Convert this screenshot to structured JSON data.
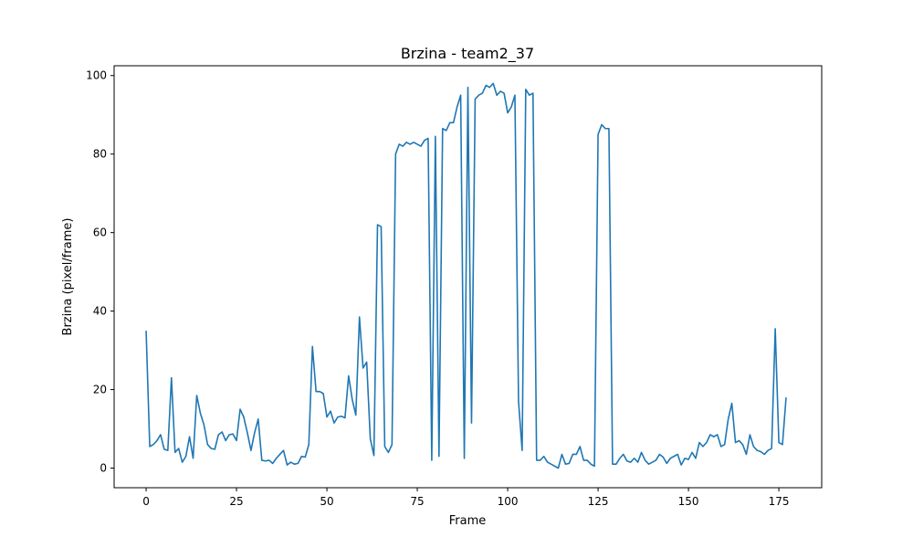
{
  "chart_data": {
    "type": "line",
    "title": "Brzina - team2_37",
    "xlabel": "Frame",
    "ylabel": "Brzina (pixel/frame)",
    "xlim": [
      -8.85,
      186.85
    ],
    "ylim": [
      -5,
      102.5
    ],
    "xticks": [
      0,
      25,
      50,
      75,
      100,
      125,
      150,
      175
    ],
    "yticks": [
      0,
      20,
      40,
      60,
      80,
      100
    ],
    "grid": false,
    "line_color": "#1f77b4",
    "series": [
      {
        "x": [
          0,
          1,
          2,
          3,
          4,
          5,
          6,
          7,
          8,
          9,
          10,
          11,
          12,
          13,
          14,
          15,
          16,
          17,
          18,
          19,
          20,
          21,
          22,
          23,
          24,
          25,
          26,
          27,
          28,
          29,
          30,
          31,
          32,
          33,
          34,
          35,
          36,
          37,
          38,
          39,
          40,
          41,
          42,
          43,
          44,
          45,
          46,
          47,
          48,
          49,
          50,
          51,
          52,
          53,
          54,
          55,
          56,
          57,
          58,
          59,
          60,
          61,
          62,
          63,
          64,
          65,
          66,
          67,
          68,
          69,
          70,
          71,
          72,
          73,
          74,
          75,
          76,
          77,
          78,
          79,
          80,
          81,
          82,
          83,
          84,
          85,
          86,
          87,
          88,
          89,
          90,
          91,
          92,
          93,
          94,
          95,
          96,
          97,
          98,
          99,
          100,
          101,
          102,
          103,
          104,
          105,
          106,
          107,
          108,
          109,
          110,
          111,
          112,
          113,
          114,
          115,
          116,
          117,
          118,
          119,
          120,
          121,
          122,
          123,
          124,
          125,
          126,
          127,
          128,
          129,
          130,
          131,
          132,
          133,
          134,
          135,
          136,
          137,
          138,
          139,
          140,
          141,
          142,
          143,
          144,
          145,
          146,
          147,
          148,
          149,
          150,
          151,
          152,
          153,
          154,
          155,
          156,
          157,
          158,
          159,
          160,
          161,
          162,
          163,
          164,
          165,
          166,
          167,
          168,
          169,
          170,
          171,
          172,
          173,
          174,
          175,
          176,
          177
        ],
        "y": [
          35,
          5.5,
          6,
          7,
          8.5,
          4.8,
          4.5,
          23,
          4,
          5,
          1.5,
          3,
          8,
          2.5,
          18.5,
          14,
          11,
          6,
          5,
          4.8,
          8.5,
          9.2,
          7,
          8.5,
          8.7,
          7,
          15,
          13,
          9,
          4.5,
          9,
          12.5,
          2,
          1.8,
          2,
          1.2,
          2.5,
          3.5,
          4.5,
          0.8,
          1.5,
          1,
          1.2,
          3,
          2.8,
          6,
          31,
          19.5,
          19.5,
          19,
          13,
          14.5,
          11.5,
          13,
          13.2,
          12.8,
          23.5,
          17.5,
          13.5,
          38.5,
          25.5,
          27,
          7.5,
          3.2,
          62,
          61.5,
          5.5,
          4,
          6,
          80,
          82.5,
          82,
          83,
          82.5,
          83,
          82.5,
          82,
          83.5,
          84,
          2,
          84.5,
          3,
          86.5,
          86,
          88,
          88,
          92,
          95,
          2.5,
          97,
          11.5,
          94,
          95,
          95.5,
          97.5,
          97,
          98,
          95,
          96,
          95.5,
          90.5,
          92,
          95,
          17,
          4.5,
          96.5,
          95,
          95.5,
          2,
          2,
          3,
          1.5,
          1,
          0.5,
          0,
          3.5,
          1,
          1.2,
          3.5,
          3.5,
          5.5,
          2,
          2,
          1,
          0.5,
          85,
          87.5,
          86.5,
          86.5,
          1,
          1,
          2.5,
          3.5,
          1.8,
          1.5,
          2.5,
          1.5,
          4,
          2,
          1,
          1.5,
          2,
          3.5,
          2.8,
          1.2,
          2.5,
          3,
          3.5,
          0.8,
          2.5,
          2.2,
          4,
          2.5,
          6.5,
          5.5,
          6.5,
          8.5,
          8,
          8.5,
          5.5,
          6,
          12.5,
          16.5,
          6.5,
          7,
          6,
          3.5,
          8.5,
          5.5,
          4.5,
          4.2,
          3.5,
          4.5,
          5,
          35.5,
          6.5,
          6,
          18
        ]
      }
    ]
  }
}
